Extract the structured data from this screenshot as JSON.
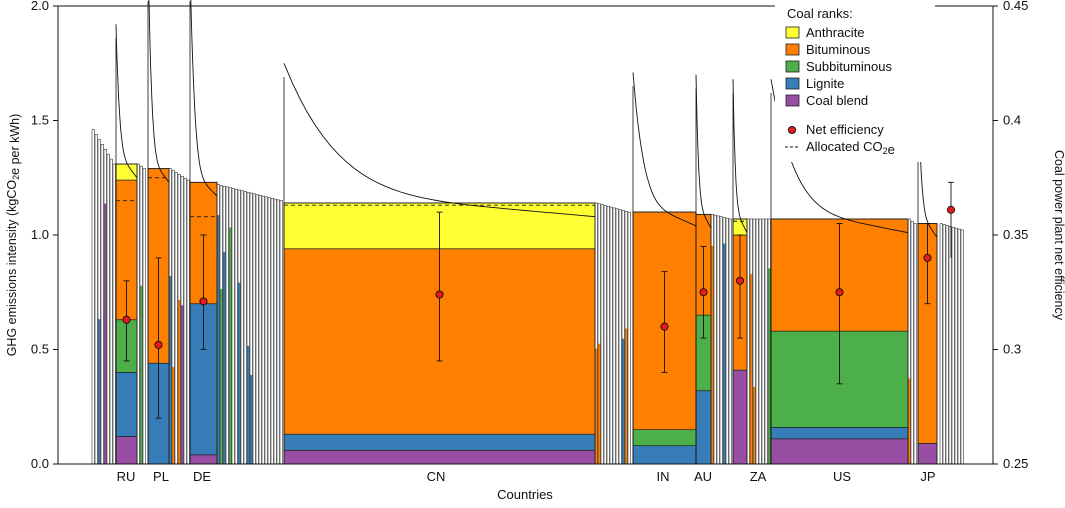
{
  "chart_data": {
    "type": "bar",
    "xlabel": "Countries",
    "ylabel_left": "GHG emissions intensity (kgCO2e per kWh)",
    "ylabel_right": "Coal power plant net efficiency",
    "ylim_left": [
      0,
      2.0
    ],
    "ylim_right": [
      0.25,
      0.45
    ],
    "yticks_left": [
      "0.0",
      "0.5",
      "1.0",
      "1.5",
      "2.0"
    ],
    "yticks_right": [
      "0.25",
      "0.3",
      "0.35",
      "0.4",
      "0.45"
    ],
    "grid": false,
    "legend_placement": "top-right",
    "legend": {
      "title": "Coal ranks:",
      "items": [
        {
          "label": "Anthracite",
          "color": "#ffff33"
        },
        {
          "label": "Bituminous",
          "color": "#ff7f00"
        },
        {
          "label": "Subbituminous",
          "color": "#4daf4a"
        },
        {
          "label": "Lignite",
          "color": "#377eb8"
        },
        {
          "label": "Coal blend",
          "color": "#984ea3"
        }
      ],
      "net_efficiency_label": "Net efficiency",
      "allocated_label": "Allocated CO2e"
    },
    "colors": {
      "anthracite": "#ffff33",
      "bituminous": "#ff7f00",
      "subbituminous": "#4daf4a",
      "lignite": "#377eb8",
      "blend": "#984ea3",
      "efficiency_marker": "#e41a1c"
    },
    "countries": [
      {
        "label": "RU",
        "total": 1.31,
        "allocated": 1.15,
        "stack": {
          "blend": 0.12,
          "lignite": 0.28,
          "subbituminous": 0.23,
          "bituminous": 0.61,
          "anthracite": 0.07
        },
        "efficiency": 0.313,
        "eff_low": 0.295,
        "eff_high": 0.33
      },
      {
        "label": "PL",
        "total": 1.29,
        "allocated": 1.25,
        "stack": {
          "blend": 0.0,
          "lignite": 0.44,
          "subbituminous": 0.0,
          "bituminous": 0.85,
          "anthracite": 0.0
        },
        "efficiency": 0.302,
        "eff_low": 0.27,
        "eff_high": 0.34
      },
      {
        "label": "DE",
        "total": 1.23,
        "allocated": 1.08,
        "stack": {
          "blend": 0.04,
          "lignite": 0.66,
          "subbituminous": 0.0,
          "bituminous": 0.53,
          "anthracite": 0.0
        },
        "efficiency": 0.321,
        "eff_low": 0.3,
        "eff_high": 0.35
      },
      {
        "label": "CN",
        "total": 1.14,
        "allocated": 1.13,
        "stack": {
          "blend": 0.06,
          "lignite": 0.07,
          "subbituminous": 0.0,
          "bituminous": 0.81,
          "anthracite": 0.2
        },
        "efficiency": 0.324,
        "eff_low": 0.295,
        "eff_high": 0.36
      },
      {
        "label": "IN",
        "total": 1.1,
        "allocated": 1.1,
        "stack": {
          "blend": 0.0,
          "lignite": 0.08,
          "subbituminous": 0.07,
          "bituminous": 0.95,
          "anthracite": 0.0
        },
        "efficiency": 0.31,
        "eff_low": 0.29,
        "eff_high": 0.334
      },
      {
        "label": "AU",
        "total": 1.09,
        "allocated": 1.09,
        "stack": {
          "blend": 0.0,
          "lignite": 0.32,
          "subbituminous": 0.33,
          "bituminous": 0.44,
          "anthracite": 0.0
        },
        "efficiency": 0.325,
        "eff_low": 0.305,
        "eff_high": 0.345
      },
      {
        "label": "ZA",
        "total": 1.07,
        "allocated": 1.06,
        "stack": {
          "blend": 0.41,
          "lignite": 0.0,
          "subbituminous": 0.0,
          "bituminous": 0.59,
          "anthracite": 0.07
        },
        "efficiency": 0.33,
        "eff_low": 0.305,
        "eff_high": 0.35
      },
      {
        "label": "US",
        "total": 1.07,
        "allocated": 1.07,
        "stack": {
          "blend": 0.11,
          "lignite": 0.05,
          "subbituminous": 0.42,
          "bituminous": 0.49,
          "anthracite": 0.0
        },
        "efficiency": 0.325,
        "eff_low": 0.285,
        "eff_high": 0.355
      },
      {
        "label": "JP",
        "total": 1.05,
        "allocated": 1.05,
        "stack": {
          "blend": 0.09,
          "lignite": 0.0,
          "subbituminous": 0.0,
          "bituminous": 0.96,
          "anthracite": 0.0
        },
        "efficiency": 0.34,
        "eff_low": 0.32,
        "eff_high": 0.355
      }
    ],
    "extra_efficiency_points": [
      {
        "efficiency": 0.361,
        "eff_low": 0.34,
        "eff_high": 0.373
      }
    ]
  }
}
